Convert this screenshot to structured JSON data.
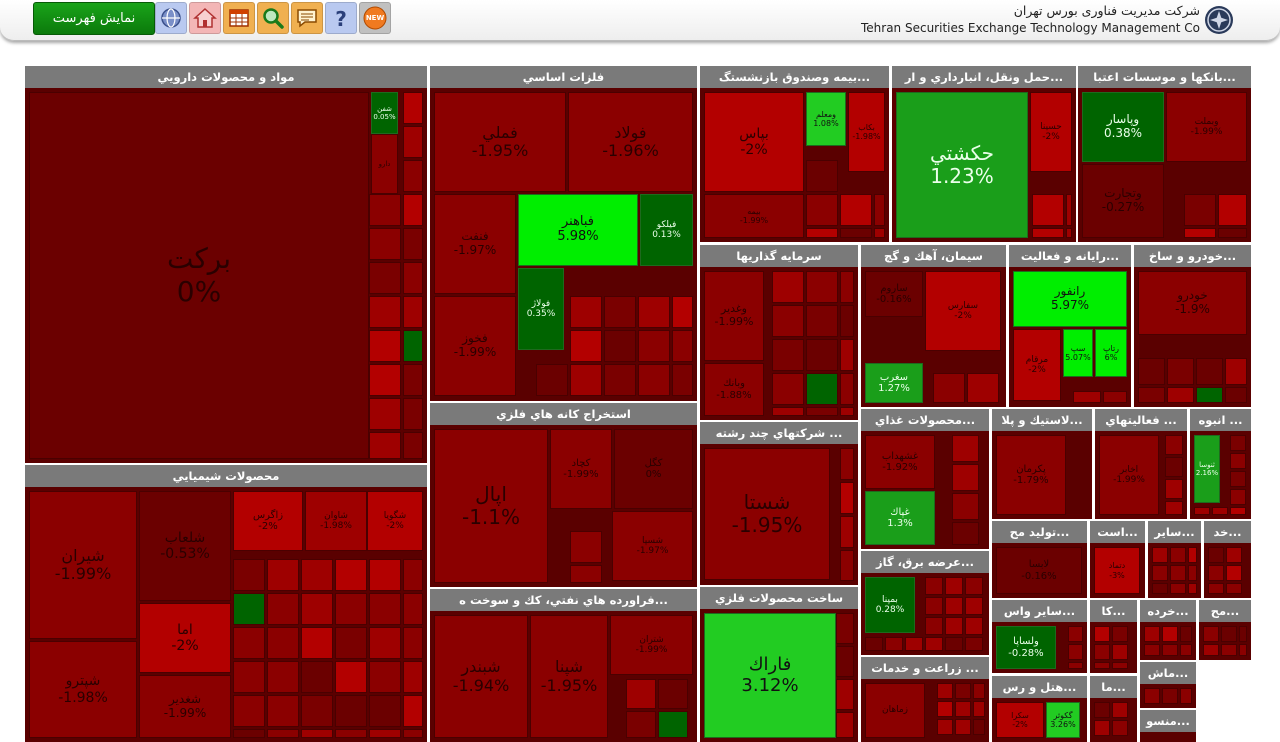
{
  "header": {
    "show_list_label": "نمایش فهرست",
    "company_fa": "شرکت مدیریت فناوری بورس تهران",
    "company_en": "Tehran Securities Exchange Technology Management Co",
    "new_badge": "NEW",
    "toolbar_icons": [
      {
        "name": "new-icon",
        "color": "#c0c0c0"
      },
      {
        "name": "help-icon",
        "color": "#b9c9f0"
      },
      {
        "name": "chat-icon",
        "color": "#f0b050"
      },
      {
        "name": "search-icon",
        "color": "#f0b050"
      },
      {
        "name": "table-icon",
        "color": "#f0b050"
      },
      {
        "name": "home-icon",
        "color": "#f3b6b6"
      },
      {
        "name": "globe-icon",
        "color": "#b9c9f0"
      }
    ]
  },
  "colors": {
    "darkred": "#6b0000",
    "red": "#8b0000",
    "midred": "#9e0000",
    "brightred": "#b30000",
    "darkgreen": "#006400",
    "green": "#1a9e1a",
    "brightgreen": "#22cc22",
    "limegreen": "#00ee00"
  },
  "panels": [
    {
      "title": "مواد و محصولات دارويي",
      "cells": [
        {
          "name": "بركت",
          "pct": "0%",
          "color": "#6b0000"
        },
        {
          "name": "شفن",
          "pct": "0.05%",
          "color": "#006400"
        },
        {
          "name": "دارو",
          "pct": "",
          "color": "#8b0000"
        }
      ]
    },
    {
      "title": "محصولات شيميايي",
      "cells": [
        {
          "name": "شيران",
          "pct": "-1.99%",
          "color": "#8b0000"
        },
        {
          "name": "شلعاب",
          "pct": "-0.53%",
          "color": "#6b0000"
        },
        {
          "name": "زاگرس",
          "pct": "-2%",
          "color": "#b30000"
        },
        {
          "name": "شاوان",
          "pct": "-1.98%",
          "color": "#9e0000"
        },
        {
          "name": "شگويا",
          "pct": "-2%",
          "color": "#b30000"
        },
        {
          "name": "اما",
          "pct": "-2%",
          "color": "#b30000"
        },
        {
          "name": "شپترو",
          "pct": "-1.98%",
          "color": "#8b0000"
        },
        {
          "name": "شغدير",
          "pct": "-1.99%",
          "color": "#8b0000"
        }
      ]
    },
    {
      "title": "فلزات اساسي",
      "cells": [
        {
          "name": "فملي",
          "pct": "-1.95%",
          "color": "#8b0000"
        },
        {
          "name": "فولاد",
          "pct": "-1.96%",
          "color": "#8b0000"
        },
        {
          "name": "فباهنر",
          "pct": "5.98%",
          "color": "#00ee00"
        },
        {
          "name": "فنفت",
          "pct": "-1.97%",
          "color": "#8b0000"
        },
        {
          "name": "فيلكو",
          "pct": "0.13%",
          "color": "#006400"
        },
        {
          "name": "فخوز",
          "pct": "-1.99%",
          "color": "#8b0000"
        },
        {
          "name": "فولاژ",
          "pct": "0.35%",
          "color": "#006400"
        }
      ]
    },
    {
      "title": "استخراج كانه هاي فلزي",
      "cells": [
        {
          "name": "اپال",
          "pct": "-1.1%",
          "color": "#8b0000"
        },
        {
          "name": "كچاد",
          "pct": "-1.99%",
          "color": "#8b0000"
        },
        {
          "name": "كگل",
          "pct": "0%",
          "color": "#6b0000"
        },
        {
          "name": "شسپا",
          "pct": "-1.97%",
          "color": "#8b0000"
        }
      ]
    },
    {
      "title": "...فراورده هاي نفتي، كك و سوخت ه",
      "cells": [
        {
          "name": "شبندر",
          "pct": "-1.94%",
          "color": "#8b0000"
        },
        {
          "name": "شپنا",
          "pct": "-1.95%",
          "color": "#8b0000"
        },
        {
          "name": "شتران",
          "pct": "-1.99%",
          "color": "#8b0000"
        }
      ]
    },
    {
      "title": "...بيمه وصندوق بازنشستگ",
      "cells": [
        {
          "name": "بپاس",
          "pct": "-2%",
          "color": "#b30000"
        },
        {
          "name": "ومعلم",
          "pct": "1.08%",
          "color": "#22cc22"
        },
        {
          "name": "بكاب",
          "pct": "-1.98%",
          "color": "#b30000"
        },
        {
          "name": "بيمه",
          "pct": "-1.99%",
          "color": "#8b0000"
        }
      ]
    },
    {
      "title": "...حمل ونقل، انبارداري و ار",
      "cells": [
        {
          "name": "حكشتي",
          "pct": "1.23%",
          "color": "#1a9e1a"
        },
        {
          "name": "حسينا",
          "pct": "-2%",
          "color": "#b30000"
        }
      ]
    },
    {
      "title": "...بانكها و موسسات اعتبا",
      "cells": [
        {
          "name": "وپاسار",
          "pct": "0.38%",
          "color": "#006400"
        },
        {
          "name": "وبملت",
          "pct": "-1.99%",
          "color": "#8b0000"
        },
        {
          "name": "وتجارت",
          "pct": "-0.27%",
          "color": "#6b0000"
        }
      ]
    },
    {
      "title": "سرمايه گذاريها",
      "cells": [
        {
          "name": "وغدير",
          "pct": "-1.99%",
          "color": "#8b0000"
        },
        {
          "name": "وبانك",
          "pct": "-1.88%",
          "color": "#8b0000"
        }
      ]
    },
    {
      "title": "سيمان، آهك و گچ",
      "cells": [
        {
          "name": "ساروم",
          "pct": "-0.16%",
          "color": "#6b0000"
        },
        {
          "name": "سفارس",
          "pct": "-2%",
          "color": "#b30000"
        },
        {
          "name": "سغرب",
          "pct": "1.27%",
          "color": "#1a9e1a"
        }
      ]
    },
    {
      "title": "...رايانه و فعاليت",
      "cells": [
        {
          "name": "رانفور",
          "pct": "5.97%",
          "color": "#00ee00"
        },
        {
          "name": "مرقام",
          "pct": "-2%",
          "color": "#b30000"
        },
        {
          "name": "سپ",
          "pct": "5.07%",
          "color": "#00ee00"
        },
        {
          "name": "رتاپ",
          "pct": "6%",
          "color": "#00ee00"
        }
      ]
    },
    {
      "title": "...خودرو و ساخ",
      "cells": [
        {
          "name": "خودرو",
          "pct": "-1.9%",
          "color": "#8b0000"
        }
      ]
    },
    {
      "title": "... شركتهاي چند رشته",
      "cells": [
        {
          "name": "شستا",
          "pct": "-1.95%",
          "color": "#8b0000"
        }
      ]
    },
    {
      "title": "ساخت محصولات فلزي",
      "cells": [
        {
          "name": "فاراك",
          "pct": "3.12%",
          "color": "#22cc22"
        }
      ]
    },
    {
      "title": "...محصولات غذاي",
      "cells": [
        {
          "name": "غشهداب",
          "pct": "-1.92%",
          "color": "#8b0000"
        },
        {
          "name": "غپاك",
          "pct": "1.3%",
          "color": "#1a9e1a"
        }
      ]
    },
    {
      "title": "...عرضه برق، گاز",
      "cells": [
        {
          "name": "بمپنا",
          "pct": "0.28%",
          "color": "#006400"
        }
      ]
    },
    {
      "title": "... زراعت و خدمات",
      "cells": [
        {
          "name": "زماهان",
          "pct": "",
          "color": "#8b0000"
        }
      ]
    },
    {
      "title": "...لاستيك و پلا",
      "cells": [
        {
          "name": "پكرمان",
          "pct": "-1.79%",
          "color": "#8b0000"
        }
      ]
    },
    {
      "title": "... فعاليتهاي",
      "cells": [
        {
          "name": "اخابر",
          "pct": "-1.99%",
          "color": "#8b0000"
        }
      ]
    },
    {
      "title": "... انبوه",
      "cells": [
        {
          "name": "ثنوسا",
          "pct": "2.16%",
          "color": "#1a9e1a"
        }
      ]
    },
    {
      "title": "...توليد مح",
      "cells": [
        {
          "name": "لابسا",
          "pct": "-0.16%",
          "color": "#6b0000"
        }
      ]
    },
    {
      "title": "...است",
      "cells": [
        {
          "name": "دتماد",
          "pct": "-3%",
          "color": "#b30000"
        }
      ]
    },
    {
      "title": "...ساير",
      "cells": []
    },
    {
      "title": "...خد",
      "cells": []
    },
    {
      "title": "...ساير واس",
      "cells": [
        {
          "name": "ولساپا",
          "pct": "-0.28%",
          "color": "#006400"
        }
      ]
    },
    {
      "title": "...كا",
      "cells": []
    },
    {
      "title": "...خرده",
      "cells": []
    },
    {
      "title": "...مح",
      "cells": []
    },
    {
      "title": "...هتل و رس",
      "cells": [
        {
          "name": "سكرا",
          "pct": "-2%",
          "color": "#b30000"
        },
        {
          "name": "گكوثر",
          "pct": "3.26%",
          "color": "#22cc22"
        }
      ]
    },
    {
      "title": "...ما",
      "cells": []
    },
    {
      "title": "...ماش",
      "cells": []
    },
    {
      "title": "...منسو",
      "cells": []
    }
  ]
}
